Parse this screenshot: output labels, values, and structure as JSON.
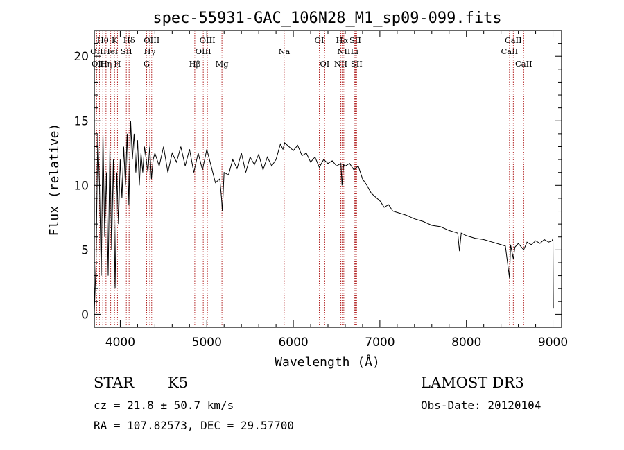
{
  "chart_data": {
    "type": "line",
    "title": "spec-55931-GAC_106N28_M1_sp09-099.fits",
    "xlabel": "Wavelength (Å)",
    "ylabel": "Flux (relative)",
    "xlim": [
      3700,
      9100
    ],
    "ylim": [
      -1,
      22
    ],
    "x_ticks": [
      4000,
      5000,
      6000,
      7000,
      8000,
      9000
    ],
    "y_ticks": [
      0,
      5,
      10,
      15,
      20
    ],
    "grid": false,
    "series": [
      {
        "name": "flux",
        "x": [
          3700,
          3720,
          3740,
          3760,
          3780,
          3800,
          3820,
          3840,
          3860,
          3880,
          3900,
          3920,
          3940,
          3960,
          3980,
          4000,
          4020,
          4040,
          4060,
          4080,
          4100,
          4120,
          4140,
          4160,
          4180,
          4200,
          4220,
          4240,
          4260,
          4280,
          4300,
          4320,
          4340,
          4360,
          4380,
          4400,
          4450,
          4500,
          4550,
          4600,
          4650,
          4700,
          4750,
          4800,
          4850,
          4900,
          4950,
          5000,
          5050,
          5100,
          5150,
          5170,
          5180,
          5200,
          5250,
          5300,
          5350,
          5400,
          5450,
          5500,
          5550,
          5600,
          5650,
          5700,
          5750,
          5800,
          5850,
          5880,
          5900,
          5950,
          6000,
          6050,
          6100,
          6150,
          6200,
          6250,
          6300,
          6350,
          6400,
          6450,
          6500,
          6550,
          6563,
          6580,
          6600,
          6650,
          6700,
          6750,
          6800,
          6850,
          6900,
          6950,
          7000,
          7050,
          7100,
          7150,
          7200,
          7300,
          7400,
          7500,
          7600,
          7700,
          7800,
          7900,
          7920,
          7940,
          8000,
          8100,
          8200,
          8300,
          8400,
          8450,
          8498,
          8510,
          8542,
          8560,
          8600,
          8662,
          8700,
          8750,
          8800,
          8850,
          8900,
          8950,
          8990,
          9000,
          9005
        ],
        "values": [
          0.2,
          4,
          14,
          10,
          3,
          14,
          6,
          11,
          3,
          13,
          5,
          12,
          2,
          11,
          7,
          12,
          9,
          13,
          10,
          14,
          8.5,
          15,
          12,
          14,
          11,
          13.5,
          10,
          12.5,
          11,
          13,
          12,
          11,
          13,
          10.5,
          12,
          12.5,
          11.5,
          13,
          11,
          12.5,
          11.8,
          13,
          11.5,
          12.8,
          11,
          12.5,
          11.2,
          12.8,
          11.5,
          10.2,
          10.5,
          9,
          8,
          11,
          10.8,
          12,
          11.3,
          12.5,
          11,
          12.2,
          11.6,
          12.4,
          11.2,
          12.2,
          11.5,
          12,
          13.2,
          12.8,
          13.3,
          13,
          12.7,
          13.1,
          12.3,
          12.5,
          11.8,
          12.2,
          11.4,
          12,
          11.7,
          11.9,
          11.5,
          11.7,
          10,
          11.6,
          11.5,
          11.7,
          11.2,
          11.5,
          10.5,
          10,
          9.4,
          9.1,
          8.8,
          8.3,
          8.5,
          8.0,
          7.9,
          7.7,
          7.4,
          7.2,
          6.9,
          6.8,
          6.5,
          6.3,
          4.9,
          6.3,
          6.1,
          5.9,
          5.8,
          5.6,
          5.4,
          5.3,
          2.8,
          5.4,
          4.3,
          5.2,
          5.5,
          5.0,
          5.6,
          5.4,
          5.7,
          5.5,
          5.8,
          5.6,
          5.7,
          5.9,
          0.5
        ]
      }
    ],
    "lines": [
      {
        "label": "Hθ",
        "x": 3798,
        "row": 1
      },
      {
        "label": "OII",
        "x": 3727,
        "row": 2
      },
      {
        "label": "OIII",
        "x": 3760,
        "row": 3
      },
      {
        "label": "Hη",
        "x": 3835,
        "row": 3
      },
      {
        "label": "HeI",
        "x": 3889,
        "row": 2
      },
      {
        "label": "K",
        "x": 3934,
        "row": 1
      },
      {
        "label": "H",
        "x": 3968,
        "row": 3
      },
      {
        "label": "SII",
        "x": 4070,
        "row": 2
      },
      {
        "label": "Hδ",
        "x": 4102,
        "row": 1
      },
      {
        "label": "G",
        "x": 4305,
        "row": 3
      },
      {
        "label": "Hγ",
        "x": 4341,
        "row": 2
      },
      {
        "label": "OIII",
        "x": 4363,
        "row": 1
      },
      {
        "label": "Hβ",
        "x": 4861,
        "row": 3
      },
      {
        "label": "OIII",
        "x": 4959,
        "row": 2
      },
      {
        "label": "OIII",
        "x": 5007,
        "row": 1
      },
      {
        "label": "Mg",
        "x": 5175,
        "row": 3
      },
      {
        "label": "Na",
        "x": 5894,
        "row": 2
      },
      {
        "label": "OI",
        "x": 6300,
        "row": 1
      },
      {
        "label": "OI",
        "x": 6363,
        "row": 3
      },
      {
        "label": "NII",
        "x": 6548,
        "row": 3
      },
      {
        "label": "Hα",
        "x": 6563,
        "row": 1
      },
      {
        "label": "NII",
        "x": 6583,
        "row": 2
      },
      {
        "label": "Li",
        "x": 6707,
        "row": 2
      },
      {
        "label": "SII",
        "x": 6716,
        "row": 1
      },
      {
        "label": "SII",
        "x": 6731,
        "row": 3
      },
      {
        "label": "CaII",
        "x": 8498,
        "row": 2
      },
      {
        "label": "CaII",
        "x": 8542,
        "row": 1
      },
      {
        "label": "CaII",
        "x": 8662,
        "row": 3
      }
    ],
    "line_color": "#b22222"
  },
  "info": {
    "class_label": "STAR",
    "subclass": "K5",
    "cz": "cz = 21.8 ± 50.7 km/s",
    "coords": "RA = 107.82573, DEC =  29.57700",
    "survey": "LAMOST DR3",
    "obs_date": "Obs-Date: 20120104"
  }
}
